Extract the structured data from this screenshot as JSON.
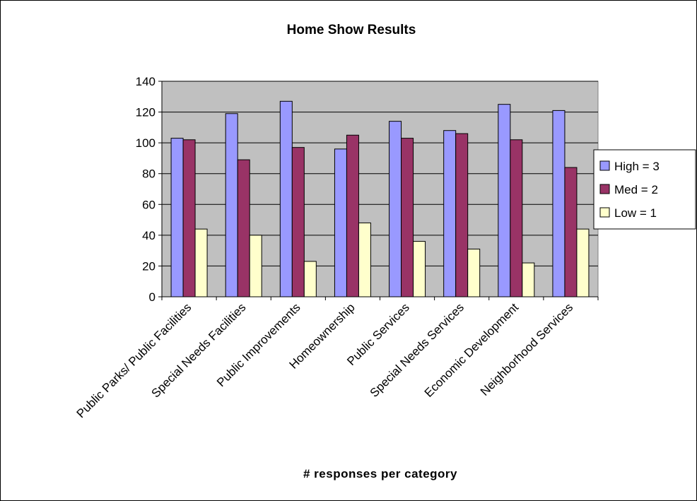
{
  "chart_data": {
    "type": "bar",
    "title": "Home Show Results",
    "xlabel": "# responses per category",
    "ylabel": "",
    "ylim": [
      0,
      140
    ],
    "yticks": [
      0,
      20,
      40,
      60,
      80,
      100,
      120,
      140
    ],
    "grid": true,
    "legend_position": "right",
    "categories": [
      "Public Parks/ Public Facilities",
      "Special Needs Facilities",
      "Public Improvements",
      "Homeownership",
      "Public Services",
      "Special Needs Services",
      "Economic Development",
      "Neighborhood Services"
    ],
    "series": [
      {
        "name": "High = 3",
        "color": "#9999ff",
        "values": [
          103,
          119,
          127,
          96,
          114,
          108,
          125,
          121
        ]
      },
      {
        "name": "Med = 2",
        "color": "#993366",
        "values": [
          102,
          89,
          97,
          105,
          103,
          106,
          102,
          84
        ]
      },
      {
        "name": "Low = 1",
        "color": "#ffffcc",
        "values": [
          44,
          40,
          23,
          48,
          36,
          31,
          22,
          44
        ]
      }
    ],
    "plot_background": "#c0c0c0"
  }
}
